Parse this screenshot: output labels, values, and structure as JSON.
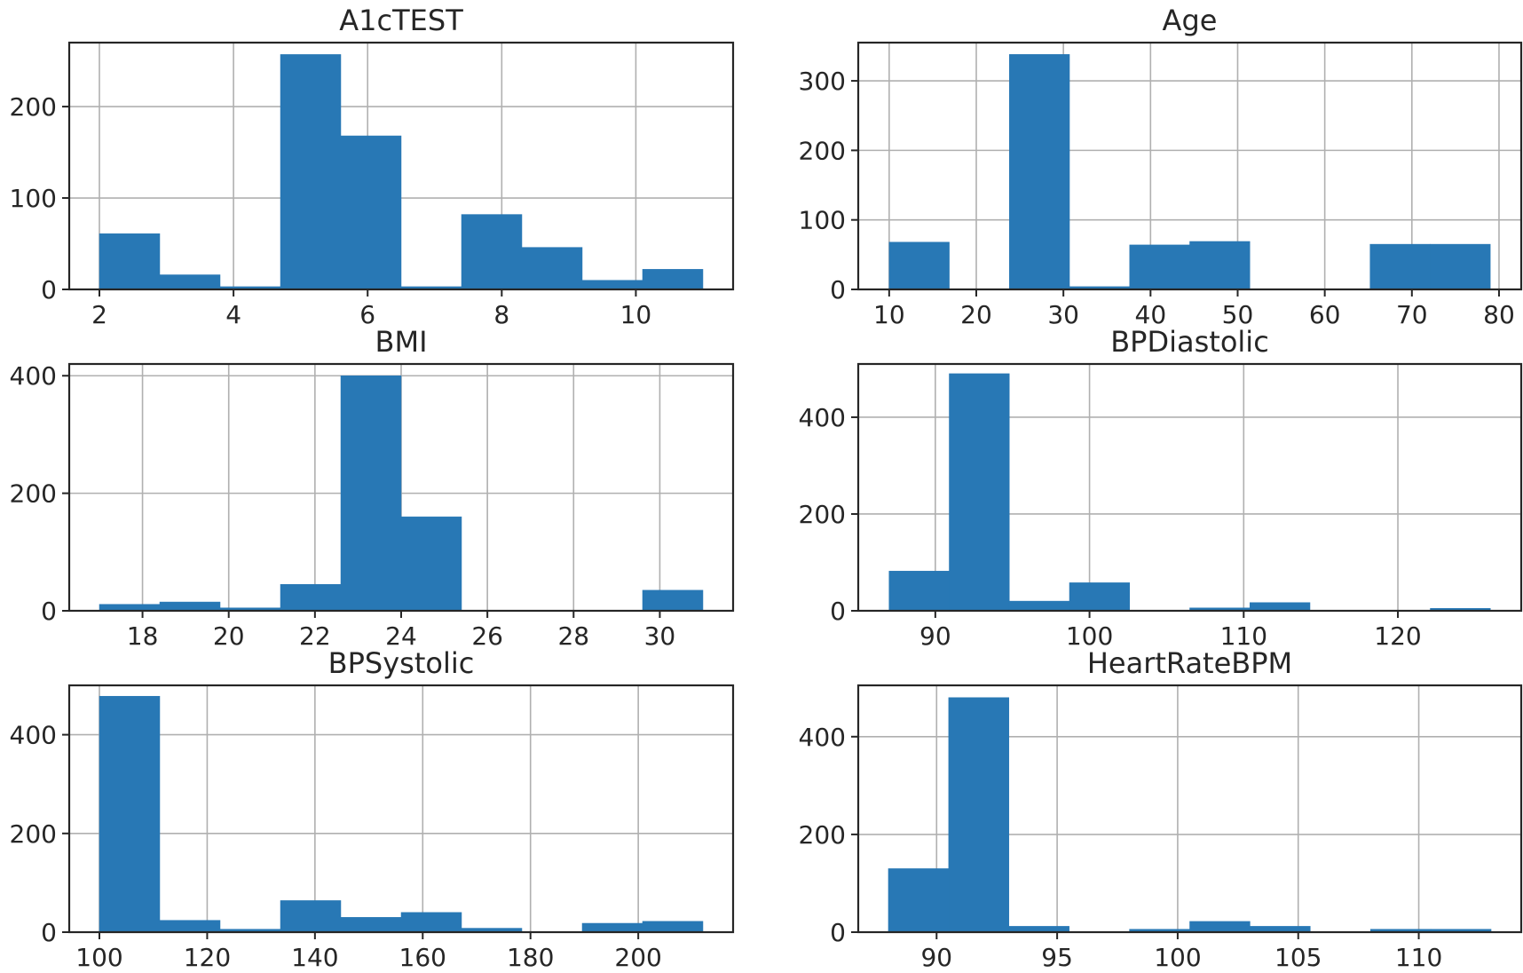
{
  "chart_data": [
    {
      "type": "bar",
      "title": "A1cTEST",
      "xlim": [
        1.55,
        11.45
      ],
      "ylim": [
        0,
        270
      ],
      "xticks": [
        2,
        4,
        6,
        8,
        10
      ],
      "yticks": [
        0,
        100,
        200
      ],
      "bins": [
        2,
        2.9,
        3.8,
        4.7,
        5.6,
        6.5,
        7.4,
        8.3,
        9.2,
        10.1,
        11
      ],
      "counts": [
        61,
        16,
        3,
        257,
        168,
        3,
        82,
        46,
        10,
        22
      ],
      "bar_color": "#2878b5",
      "grid": true
    },
    {
      "type": "bar",
      "title": "Age",
      "xlim": [
        6.45,
        82.55
      ],
      "ylim": [
        0,
        355
      ],
      "xticks": [
        10,
        20,
        30,
        40,
        50,
        60,
        70,
        80
      ],
      "yticks": [
        0,
        100,
        200,
        300
      ],
      "bins": [
        10,
        16.9,
        23.8,
        30.7,
        37.6,
        44.5,
        51.4,
        58.3,
        65.2,
        72.1,
        79
      ],
      "counts": [
        68,
        0,
        338,
        4,
        64,
        69,
        0,
        0,
        65,
        65
      ],
      "bar_color": "#2878b5",
      "grid": true
    },
    {
      "type": "bar",
      "title": "BMI",
      "xlim": [
        16.3,
        31.7
      ],
      "ylim": [
        0,
        420
      ],
      "xticks": [
        18,
        20,
        22,
        24,
        26,
        28,
        30
      ],
      "yticks": [
        0,
        200,
        400
      ],
      "bins": [
        17,
        18.4,
        19.8,
        21.2,
        22.6,
        24,
        25.4,
        26.8,
        28.2,
        29.6,
        31
      ],
      "counts": [
        11,
        15,
        5,
        45,
        400,
        160,
        0,
        0,
        0,
        35
      ],
      "bar_color": "#2878b5",
      "grid": true
    },
    {
      "type": "bar",
      "title": "BPDiastolic",
      "xlim": [
        85,
        128
      ],
      "ylim": [
        0,
        510
      ],
      "xticks": [
        90,
        100,
        110,
        120
      ],
      "yticks": [
        0,
        200,
        400
      ],
      "bins": [
        87,
        90.9,
        94.8,
        98.7,
        102.6,
        106.5,
        110.4,
        114.3,
        118.2,
        122.1,
        126
      ],
      "counts": [
        82,
        490,
        20,
        58,
        0,
        6,
        17,
        0,
        0,
        5
      ],
      "bar_color": "#2878b5",
      "grid": true
    },
    {
      "type": "bar",
      "title": "BPSystolic",
      "xlim": [
        94.4,
        217.6
      ],
      "ylim": [
        0,
        500
      ],
      "xticks": [
        100,
        120,
        140,
        160,
        180,
        200
      ],
      "yticks": [
        0,
        200,
        400
      ],
      "bins": [
        100,
        111.2,
        122.4,
        133.6,
        144.8,
        156,
        167.2,
        178.4,
        189.6,
        200.8,
        212
      ],
      "counts": [
        478,
        24,
        6,
        64,
        30,
        40,
        8,
        0,
        18,
        22
      ],
      "bar_color": "#2878b5",
      "grid": true
    },
    {
      "type": "bar",
      "title": "HeartRateBPM",
      "xlim": [
        86.75,
        114.25
      ],
      "ylim": [
        0,
        505
      ],
      "xticks": [
        90,
        95,
        100,
        105,
        110
      ],
      "yticks": [
        0,
        200,
        400
      ],
      "bins": [
        88,
        90.5,
        93,
        95.5,
        98,
        100.5,
        103,
        105.5,
        108,
        110.5,
        113
      ],
      "counts": [
        130,
        480,
        12,
        0,
        6,
        22,
        12,
        0,
        6,
        6
      ],
      "bar_color": "#2878b5",
      "grid": true
    }
  ]
}
